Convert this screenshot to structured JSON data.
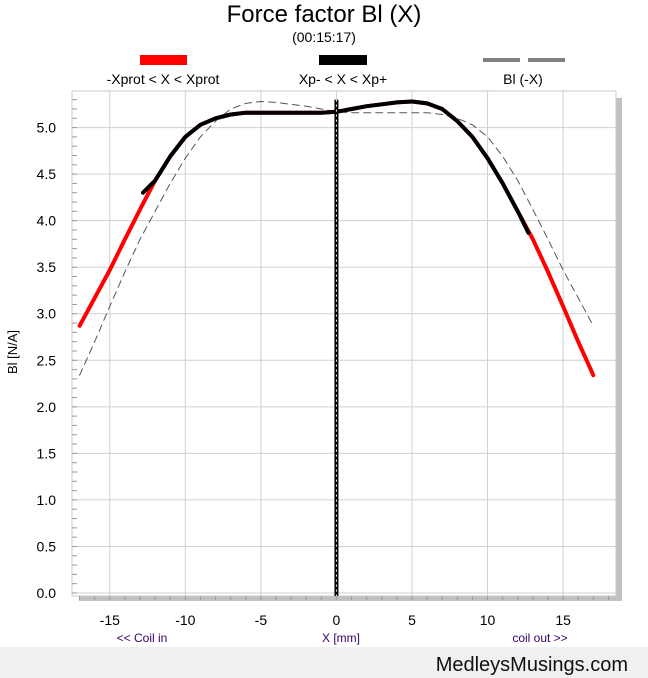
{
  "chart_data": {
    "type": "line",
    "title": "Force factor Bl (X)",
    "subtitle": "(00:15:17)",
    "xlabel": "X [mm]",
    "ylabel": "Bl [N/A]",
    "x_note_left": "<< Coil in",
    "x_note_right": "coil out >>",
    "xlim": [
      -17.5,
      18.5
    ],
    "ylim": [
      0,
      5.35
    ],
    "xticks": [
      -15,
      -10,
      -5,
      0,
      5,
      10,
      15
    ],
    "yticks": [
      0.0,
      0.5,
      1.0,
      1.5,
      2.0,
      2.5,
      3.0,
      3.5,
      4.0,
      4.5,
      5.0
    ],
    "grid": true,
    "legend_position": "top",
    "legend": [
      {
        "label": "-Xprot < X < Xprot",
        "color": "#ff0000",
        "style": "solid"
      },
      {
        "label": "Xp- < X < Xp+",
        "color": "#000000",
        "style": "solid"
      },
      {
        "label": "Bl (-X)",
        "color": "#808080",
        "style": "dashed"
      }
    ],
    "series": [
      {
        "name": "-Xprot < X < Xprot",
        "color": "#ff0000",
        "x": [
          -17,
          -16,
          -15,
          -14,
          -13,
          -12,
          -11,
          -10,
          -9,
          -8,
          -7,
          -6,
          -5,
          -4,
          -3,
          -2,
          -1,
          0,
          1,
          2,
          3,
          4,
          5,
          6,
          7,
          8,
          9,
          10,
          11,
          12,
          13,
          14,
          15,
          16,
          17
        ],
        "y": [
          2.87,
          3.17,
          3.47,
          3.8,
          4.12,
          4.43,
          4.69,
          4.9,
          5.03,
          5.1,
          5.14,
          5.16,
          5.16,
          5.16,
          5.16,
          5.16,
          5.16,
          5.17,
          5.2,
          5.23,
          5.25,
          5.27,
          5.28,
          5.26,
          5.2,
          5.07,
          4.9,
          4.67,
          4.4,
          4.1,
          3.8,
          3.45,
          3.08,
          2.7,
          2.34
        ]
      },
      {
        "name": "Xp- < X < Xp+",
        "color": "#000000",
        "x": [
          -12.8,
          -12,
          -11,
          -10,
          -9,
          -8,
          -7,
          -6,
          -5,
          -4,
          -3,
          -2,
          -1,
          0,
          1,
          2,
          3,
          4,
          5,
          6,
          7,
          8,
          9,
          10,
          11,
          12,
          12.7
        ],
        "y": [
          4.3,
          4.43,
          4.69,
          4.9,
          5.03,
          5.1,
          5.14,
          5.16,
          5.16,
          5.16,
          5.16,
          5.16,
          5.16,
          5.17,
          5.2,
          5.23,
          5.25,
          5.27,
          5.28,
          5.26,
          5.2,
          5.07,
          4.9,
          4.67,
          4.4,
          4.1,
          3.87
        ]
      },
      {
        "name": "Bl (-X)",
        "color": "#808080",
        "x": [
          -17,
          -16,
          -15,
          -14,
          -13,
          -12,
          -11,
          -10,
          -9,
          -8,
          -7,
          -6,
          -5,
          -4,
          -3,
          -2,
          -1,
          0,
          1,
          2,
          3,
          4,
          5,
          6,
          7,
          8,
          9,
          10,
          11,
          12,
          13,
          14,
          15,
          16,
          17
        ],
        "y": [
          2.34,
          2.7,
          3.08,
          3.45,
          3.8,
          4.1,
          4.4,
          4.67,
          4.9,
          5.07,
          5.2,
          5.26,
          5.28,
          5.27,
          5.25,
          5.23,
          5.2,
          5.17,
          5.16,
          5.16,
          5.16,
          5.16,
          5.16,
          5.16,
          5.14,
          5.1,
          5.03,
          4.9,
          4.69,
          4.43,
          4.12,
          3.8,
          3.47,
          3.17,
          2.87
        ]
      }
    ],
    "vertical_marker_x": 0
  },
  "footer": {
    "site": "MedleysMusings.com"
  }
}
